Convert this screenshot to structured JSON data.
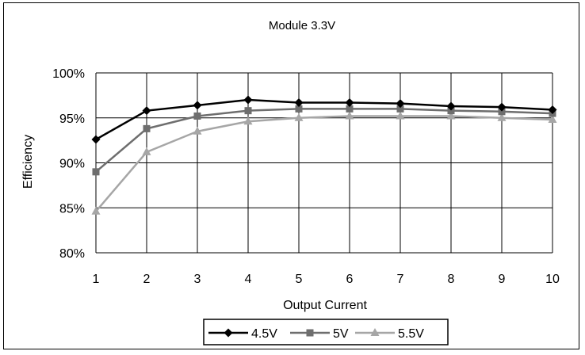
{
  "chart_data": {
    "type": "line",
    "title": "Module 3.3V",
    "xlabel": "Output Current",
    "ylabel": "Efficiency",
    "x": [
      1,
      2,
      3,
      4,
      5,
      6,
      7,
      8,
      9,
      10
    ],
    "ylim": [
      80,
      100
    ],
    "yticks": [
      "80%",
      "85%",
      "90%",
      "95%",
      "100%"
    ],
    "ytick_values": [
      80,
      85,
      90,
      95,
      100
    ],
    "grid": true,
    "legend_position": "bottom",
    "series": [
      {
        "name": "4.5V",
        "color": "#000000",
        "marker": "diamond",
        "values": [
          92.6,
          95.8,
          96.4,
          97.0,
          96.7,
          96.7,
          96.6,
          96.3,
          96.2,
          95.9
        ]
      },
      {
        "name": "5V",
        "color": "#6e6e6e",
        "marker": "square",
        "values": [
          89.0,
          93.8,
          95.2,
          95.8,
          96.0,
          96.0,
          96.0,
          95.8,
          95.7,
          95.5
        ]
      },
      {
        "name": "5.5V",
        "color": "#a6a6a6",
        "marker": "triangle",
        "values": [
          84.6,
          91.2,
          93.5,
          94.6,
          95.0,
          95.2,
          95.2,
          95.2,
          95.0,
          94.8
        ]
      }
    ]
  }
}
